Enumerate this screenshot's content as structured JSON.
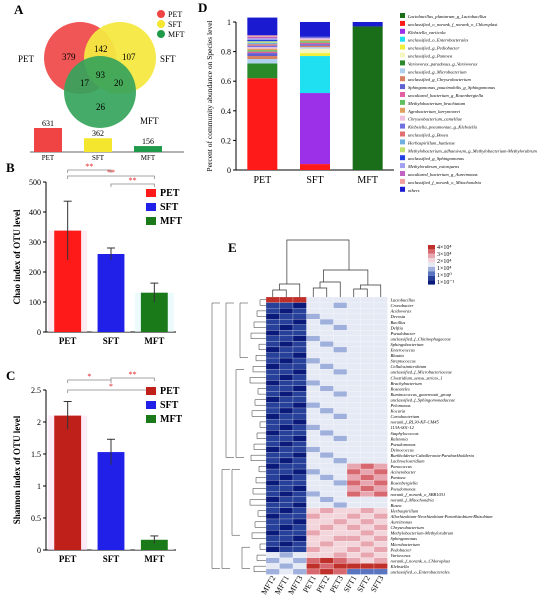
{
  "panel_labels": {
    "A": "A",
    "B": "B",
    "C": "C",
    "D": "D",
    "E": "E"
  },
  "venn": {
    "sets": [
      {
        "name": "PET",
        "color": "#f04444"
      },
      {
        "name": "SFT",
        "color": "#f4e62e"
      },
      {
        "name": "MFT",
        "color": "#1f9a4a"
      }
    ],
    "regions": {
      "pet_only": "379",
      "sft_only": "107",
      "mft_only": "26",
      "pet_sft": "142",
      "pet_mft": "17",
      "sft_mft": "20",
      "all": "93"
    },
    "totals": {
      "categories": [
        "PET",
        "SFT",
        "MFT"
      ],
      "values": [
        631,
        362,
        156
      ],
      "labels": [
        "631",
        "362",
        "156"
      ],
      "colors": [
        "#f04444",
        "#f4e62e",
        "#1f9a4a"
      ]
    }
  },
  "chart_data": [
    {
      "id": "B",
      "type": "bar",
      "title": "",
      "ylabel": "Chao index of OTU level",
      "categories": [
        "PET",
        "SFT",
        "MFT"
      ],
      "values": [
        338,
        260,
        131
      ],
      "errors": [
        98,
        20,
        32
      ],
      "colors": [
        "#ff1a1a",
        "#2020e8",
        "#1a7a1a"
      ],
      "ylim": [
        0,
        500
      ],
      "yticks": [
        0,
        100,
        200,
        300,
        400,
        500
      ],
      "legend": [
        "PET",
        "SFT",
        "MFT"
      ],
      "significance": [
        {
          "pair": [
            "PET",
            "SFT"
          ],
          "label": "**"
        },
        {
          "pair": [
            "PET",
            "MFT"
          ],
          "label": "**"
        },
        {
          "pair": [
            "SFT",
            "MFT"
          ],
          "label": "**"
        }
      ]
    },
    {
      "id": "C",
      "type": "bar",
      "title": "",
      "ylabel": "Shannon index of OTU level",
      "categories": [
        "PET",
        "SFT",
        "MFT"
      ],
      "values": [
        2.1,
        1.53,
        0.16
      ],
      "errors": [
        0.22,
        0.2,
        0.06
      ],
      "colors": [
        "#c0201a",
        "#2020e8",
        "#1a7a1a"
      ],
      "ylim": [
        0,
        2.5
      ],
      "yticks": [
        0,
        0.5,
        1,
        1.5,
        2,
        2.5
      ],
      "legend": [
        "PET",
        "SFT",
        "MFT"
      ],
      "significance": [
        {
          "pair": [
            "PET",
            "SFT"
          ],
          "label": "*"
        },
        {
          "pair": [
            "PET",
            "MFT"
          ],
          "label": "*"
        },
        {
          "pair": [
            "SFT",
            "MFT"
          ],
          "label": "**"
        }
      ]
    },
    {
      "id": "D",
      "type": "bar",
      "stacked": true,
      "ylabel": "Percent of community abundance on Species level",
      "categories": [
        "PET",
        "SFT",
        "MFT"
      ],
      "ylim": [
        0,
        1
      ],
      "yticks": [
        0,
        0.2,
        0.4,
        0.6,
        0.8,
        1
      ],
      "series": [
        {
          "name": "Lactobacillus_plantarum_g_Lactobacillus",
          "color": "#1a6e1a",
          "values": [
            0.0,
            0.0,
            0.97
          ]
        },
        {
          "name": "unclassified_o_norank_f_norank_o_Chloroplast",
          "color": "#ff1a1a",
          "values": [
            0.62,
            0.04,
            0.0
          ]
        },
        {
          "name": "Klebsiella_variicola",
          "color": "#9b30e8",
          "values": [
            0.0,
            0.48,
            0.0
          ]
        },
        {
          "name": "unclassified_o_Enterobacterales",
          "color": "#1fe0f0",
          "values": [
            0.0,
            0.25,
            0.0
          ]
        },
        {
          "name": "unclassified_g_Pediobacter",
          "color": "#f0ef3a",
          "values": [
            0.0,
            0.02,
            0.0
          ]
        },
        {
          "name": "unclassified_g_Pantoea",
          "color": "#f5f5c0",
          "values": [
            0.0,
            0.03,
            0.0
          ]
        },
        {
          "name": "Variovorax_paradoxus_g_Variovorax",
          "color": "#2a8a2a",
          "values": [
            0.1,
            0.0,
            0.0
          ]
        },
        {
          "name": "unclassified_g_Microbacterium",
          "color": "#b0d0f0",
          "values": [
            0.03,
            0.01,
            0.0
          ]
        },
        {
          "name": "unclassified_g_Chryseobacterium",
          "color": "#d98060",
          "values": [
            0.02,
            0.01,
            0.0
          ]
        },
        {
          "name": "Sphingomonas_paucimobilis_g_Sphingomonas",
          "color": "#6060d0",
          "values": [
            0.02,
            0.01,
            0.0
          ]
        },
        {
          "name": "uncultured_bacterium_g_Rosenbergiella",
          "color": "#e060a0",
          "values": [
            0.01,
            0.01,
            0.0
          ]
        },
        {
          "name": "Methylobacterium_brachiatum",
          "color": "#60c060",
          "values": [
            0.01,
            0.01,
            0.0
          ]
        },
        {
          "name": "Agrobacterium_larrymoorei",
          "color": "#e0a060",
          "values": [
            0.01,
            0.01,
            0.0
          ]
        },
        {
          "name": "Chryseobacterium_camelliae",
          "color": "#f0c0e0",
          "values": [
            0.01,
            0.01,
            0.0
          ]
        },
        {
          "name": "Klebsiella_pneumoniae_g_Klebsiella",
          "color": "#7070e0",
          "values": [
            0.01,
            0.01,
            0.0
          ]
        },
        {
          "name": "unclassified_g_Bosea",
          "color": "#e07070",
          "values": [
            0.01,
            0.0,
            0.0
          ]
        },
        {
          "name": "Herbaspirillum_huttiense",
          "color": "#70b0e0",
          "values": [
            0.01,
            0.0,
            0.0
          ]
        },
        {
          "name": "Methylobacterium_adhaesivum_g_Methylobacterium-Methylorubrum",
          "color": "#c0e070",
          "values": [
            0.01,
            0.0,
            0.0
          ]
        },
        {
          "name": "unclassified_g_Sphingomonas",
          "color": "#2040e0",
          "values": [
            0.01,
            0.0,
            0.0
          ]
        },
        {
          "name": "Methylorubrum_extorquens",
          "color": "#a0a0f0",
          "values": [
            0.01,
            0.0,
            0.0
          ]
        },
        {
          "name": "uncultured_bacterium_g_Aureimonas",
          "color": "#c060c0",
          "values": [
            0.01,
            0.0,
            0.0
          ]
        },
        {
          "name": "unclassified_f_norank_o_Mitochondria",
          "color": "#f0a0a0",
          "values": [
            0.01,
            0.0,
            0.0
          ]
        },
        {
          "name": "others",
          "color": "#1a1ad0",
          "values": [
            0.12,
            0.1,
            0.03
          ]
        }
      ]
    },
    {
      "id": "E",
      "type": "heatmap",
      "scale_labels": [
        "4×10⁴",
        "3×10⁴",
        "2×10⁴",
        "1×10⁴",
        "1×10⁰",
        "1×10⁻¹"
      ],
      "columns": [
        "MFT2",
        "MFT1",
        "MFT3",
        "PET1",
        "PET2",
        "PET3",
        "SFT1",
        "SFT2",
        "SFT3"
      ],
      "rows": [
        "Lactobacillus",
        "Cronobacter",
        "Acidovorax",
        "Devosia",
        "Bacillus",
        "Delftia",
        "Pseudobacter",
        "unclassified_f_Chitinophagaceae",
        "Sphingobacterium",
        "Enterococcus",
        "Blautia",
        "Streptococcus",
        "Cellulosimicrobium",
        "unclassified_f_Microbacteriaceae",
        "Clostridium_sensu_stricto_1",
        "Brachybacterium",
        "Roseateles",
        "Ruminococcus_gauvreauii_group",
        "unclassified_f_Sphingomonadaceae",
        "Pelomonas",
        "Kocuria",
        "Curtobacterium",
        "norank_f_RL30-KF-CM45",
        "113A-001-12",
        "Staphylococcus",
        "Ralstonia",
        "Pseudomonas",
        "Deinococcus",
        "Burkholderia-Caballeronia-Paraburkholderia",
        "Lachnoclostridium",
        "Paracoccus",
        "Acinetobacter",
        "Pantoea",
        "Rosenbergiella",
        "Pseudomonas",
        "norank_f_norank_o_SBR1031",
        "norank_f_Mitochondria",
        "Bosea",
        "Herbaspirillum",
        "Allorhizobium-Neorhizobium-Pararhizobium-Rhizobium",
        "Aureimonas",
        "Chryseobacterium",
        "Methylobacterium-Methylorubrum",
        "Sphingomonas",
        "Microbacterium",
        "Pedobacter",
        "Variovorax",
        "norank_f_norank_o_Chloroplast",
        "Klebsiella",
        "unclassified_o_Enterobacterales"
      ]
    }
  ]
}
